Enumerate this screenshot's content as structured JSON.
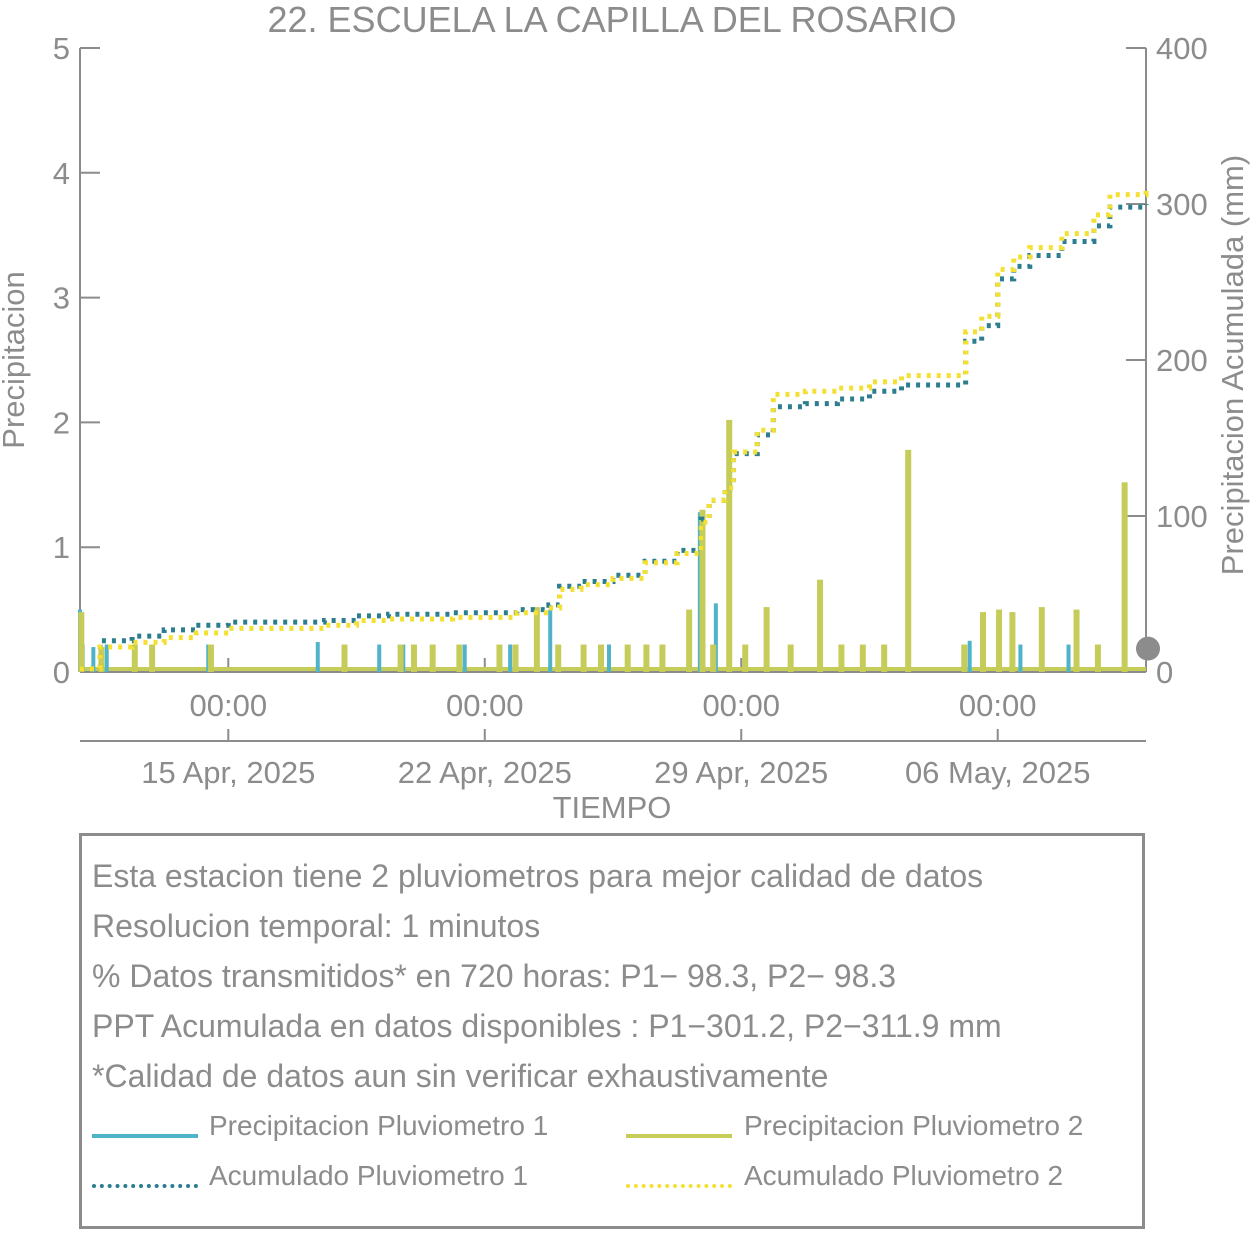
{
  "chart_data": {
    "type": "bar",
    "title": "22. ESCUELA LA CAPILLA DEL ROSARIO",
    "xlabel": "TIEMPO",
    "ylabel_left": "Precipitacion",
    "ylabel_right": "Precipitacion Acumulada (mm)",
    "ylim_left": [
      0,
      5
    ],
    "ylim_right": [
      0,
      400
    ],
    "yticks_left": [
      "0",
      "1",
      "2",
      "3",
      "4",
      "5"
    ],
    "yticks_right": [
      "0",
      "100",
      "200",
      "300",
      "400"
    ],
    "xlim": [
      "2025-04-09 09:00",
      "2025-05-12 15:00"
    ],
    "xticks": [
      {
        "time": "2025-04-14 00:00",
        "label": "00:00",
        "date": "15 Apr, 2025"
      },
      {
        "time": "2025-04-22 00:00",
        "label": "00:00",
        "date": "22 Apr, 2025"
      },
      {
        "time": "2025-04-30 00:00",
        "label": "00:00",
        "date": "29 Apr, 2025"
      },
      {
        "time": "2025-05-08 00:00",
        "label": "00:00",
        "date": "06 May, 2025"
      }
    ],
    "grid": false,
    "series": [
      {
        "name": "Precipitacion Pluviometro 1",
        "axis": "left",
        "color": "#4fb3c9",
        "style": "bar",
        "x": [
          "2025-04-09 09:00",
          "2025-04-09 11:00",
          "2025-04-09 19:00",
          "2025-04-10 05:00",
          "2025-04-13 09:00",
          "2025-04-16 19:00",
          "2025-04-18 17:00",
          "2025-04-19 11:00",
          "2025-04-21 09:00",
          "2025-04-22 19:00",
          "2025-04-24 01:00",
          "2025-04-25 21:00",
          "2025-04-28 17:00",
          "2025-04-29 05:00",
          "2025-05-07 03:00",
          "2025-05-08 17:00",
          "2025-05-10 05:00"
        ],
        "values": [
          0.5,
          0.22,
          0.2,
          0.22,
          0.22,
          0.24,
          0.22,
          0.22,
          0.22,
          0.22,
          0.5,
          0.22,
          1.28,
          0.55,
          0.25,
          0.22,
          0.22
        ]
      },
      {
        "name": "Precipitacion Pluviometro 2",
        "axis": "left",
        "color": "#c5cc5a",
        "style": "bar",
        "x": [
          "2025-04-09 10:00",
          "2025-04-10 01:00",
          "2025-04-11 02:00",
          "2025-04-11 15:00",
          "2025-04-13 11:00",
          "2025-04-17 15:00",
          "2025-04-19 09:00",
          "2025-04-19 19:00",
          "2025-04-20 09:00",
          "2025-04-21 05:00",
          "2025-04-22 11:00",
          "2025-04-22 23:00",
          "2025-04-23 15:00",
          "2025-04-24 07:00",
          "2025-04-25 02:00",
          "2025-04-25 15:00",
          "2025-04-26 11:00",
          "2025-04-27 01:00",
          "2025-04-27 13:00",
          "2025-04-28 09:00",
          "2025-04-28 19:00",
          "2025-04-29 03:00",
          "2025-04-29 15:00",
          "2025-04-30 03:00",
          "2025-04-30 19:00",
          "2025-05-01 13:00",
          "2025-05-02 11:00",
          "2025-05-03 03:00",
          "2025-05-03 19:00",
          "2025-05-04 11:00",
          "2025-05-05 05:00",
          "2025-05-06 23:00",
          "2025-05-07 13:00",
          "2025-05-08 01:00",
          "2025-05-08 11:00",
          "2025-05-09 09:00",
          "2025-05-10 11:00",
          "2025-05-11 03:00",
          "2025-05-11 23:00"
        ],
        "values": [
          0.48,
          0.2,
          0.22,
          0.22,
          0.22,
          0.22,
          0.22,
          0.22,
          0.22,
          0.22,
          0.22,
          0.22,
          0.52,
          0.22,
          0.22,
          0.22,
          0.22,
          0.22,
          0.22,
          0.5,
          1.3,
          0.22,
          2.02,
          0.22,
          0.52,
          0.22,
          0.74,
          0.22,
          0.22,
          0.22,
          1.78,
          0.22,
          0.48,
          0.5,
          0.48,
          0.52,
          0.5,
          0.22,
          1.52
        ]
      },
      {
        "name": "Acumulado Pluviometro 1",
        "axis": "right",
        "color": "#2b7d8f",
        "style": "dotted",
        "x": [
          "2025-04-09 09:00",
          "2025-04-10 00:00",
          "2025-04-11 00:00",
          "2025-04-12 00:00",
          "2025-04-13 00:00",
          "2025-04-14 00:00",
          "2025-04-15 00:00",
          "2025-04-16 00:00",
          "2025-04-17 00:00",
          "2025-04-18 00:00",
          "2025-04-19 00:00",
          "2025-04-20 00:00",
          "2025-04-21 00:00",
          "2025-04-22 00:00",
          "2025-04-23 00:00",
          "2025-04-24 00:00",
          "2025-04-24 08:00",
          "2025-04-25 00:00",
          "2025-04-26 00:00",
          "2025-04-27 00:00",
          "2025-04-28 00:00",
          "2025-04-28 18:00",
          "2025-04-29 00:00",
          "2025-04-29 12:00",
          "2025-04-29 18:00",
          "2025-04-30 12:00",
          "2025-05-01 00:00",
          "2025-05-02 00:00",
          "2025-05-03 00:00",
          "2025-05-04 00:00",
          "2025-05-05 00:00",
          "2025-05-06 00:00",
          "2025-05-07 00:00",
          "2025-05-07 12:00",
          "2025-05-08 00:00",
          "2025-05-08 12:00",
          "2025-05-09 00:00",
          "2025-05-10 00:00",
          "2025-05-11 00:00",
          "2025-05-11 12:00",
          "2025-05-12 15:00"
        ],
        "values": [
          2,
          20,
          23,
          27,
          30,
          32,
          32,
          32,
          33,
          36,
          37,
          37,
          38,
          38,
          40,
          43,
          55,
          58,
          62,
          71,
          78,
          98,
          110,
          118,
          140,
          152,
          170,
          172,
          175,
          180,
          184,
          184,
          212,
          222,
          252,
          260,
          267,
          276,
          286,
          298,
          300
        ]
      },
      {
        "name": "Acumulado Pluviometro 2",
        "axis": "right",
        "color": "#f3e033",
        "style": "dotted",
        "x": [
          "2025-04-09 09:00",
          "2025-04-10 00:00",
          "2025-04-11 00:00",
          "2025-04-12 00:00",
          "2025-04-13 00:00",
          "2025-04-14 00:00",
          "2025-04-15 00:00",
          "2025-04-16 00:00",
          "2025-04-17 00:00",
          "2025-04-18 00:00",
          "2025-04-19 00:00",
          "2025-04-20 00:00",
          "2025-04-21 00:00",
          "2025-04-22 00:00",
          "2025-04-23 00:00",
          "2025-04-24 00:00",
          "2025-04-24 08:00",
          "2025-04-25 00:00",
          "2025-04-26 00:00",
          "2025-04-27 00:00",
          "2025-04-28 00:00",
          "2025-04-28 18:00",
          "2025-04-29 00:00",
          "2025-04-29 12:00",
          "2025-04-29 18:00",
          "2025-04-30 12:00",
          "2025-05-01 00:00",
          "2025-05-02 00:00",
          "2025-05-03 00:00",
          "2025-05-04 00:00",
          "2025-05-05 00:00",
          "2025-05-06 00:00",
          "2025-05-07 00:00",
          "2025-05-07 12:00",
          "2025-05-08 00:00",
          "2025-05-08 12:00",
          "2025-05-09 00:00",
          "2025-05-10 00:00",
          "2025-05-11 00:00",
          "2025-05-11 12:00",
          "2025-05-12 15:00"
        ],
        "values": [
          2,
          16,
          19,
          22,
          25,
          28,
          28,
          28,
          30,
          33,
          34,
          34,
          35,
          35,
          38,
          41,
          53,
          56,
          60,
          70,
          76,
          96,
          110,
          118,
          141,
          155,
          178,
          180,
          182,
          186,
          190,
          190,
          218,
          228,
          258,
          266,
          272,
          281,
          293,
          306,
          310
        ]
      }
    ],
    "marker": {
      "axis": "right",
      "value": 15,
      "color": "#8c8c8c"
    }
  },
  "info": {
    "line1": "Esta estacion tiene 2 pluviometros para mejor calidad de datos",
    "line2": "Resolucion temporal: 1 minutos",
    "line3": "% Datos transmitidos* en 720 horas: P1− 98.3, P2− 98.3",
    "line4": "PPT Acumulada en datos disponibles : P1−301.2, P2−311.9 mm",
    "line5": "*Calidad de datos aun sin verificar exhaustivamente"
  },
  "legend": {
    "item1": "Precipitacion Pluviometro 1",
    "item2": "Precipitacion Pluviometro 2",
    "item3": "Acumulado Pluviometro 1",
    "item4": "Acumulado Pluviometro 2"
  }
}
